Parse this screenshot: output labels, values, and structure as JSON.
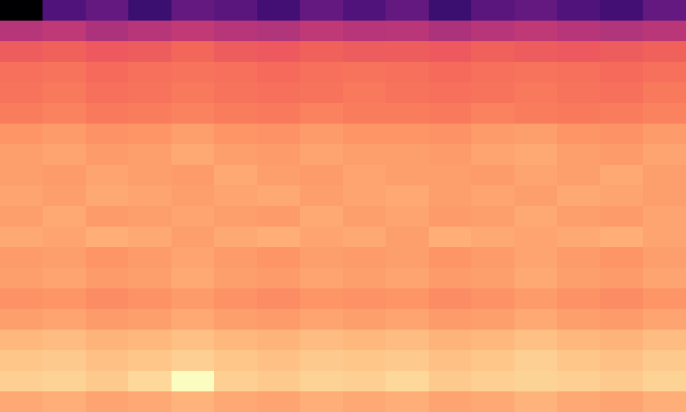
{
  "chart_data": {
    "type": "heatmap",
    "color": "magma",
    "tick_labels": false,
    "cells": [
      [
        0.0,
        0.25,
        0.3,
        0.2,
        0.3,
        0.28,
        0.22,
        0.3,
        0.25,
        0.3,
        0.2,
        0.28,
        0.3,
        0.25,
        0.22,
        0.3
      ],
      [
        0.5,
        0.52,
        0.48,
        0.5,
        0.53,
        0.5,
        0.49,
        0.52,
        0.5,
        0.51,
        0.48,
        0.5,
        0.52,
        0.5,
        0.49,
        0.51
      ],
      [
        0.66,
        0.67,
        0.65,
        0.66,
        0.68,
        0.66,
        0.65,
        0.67,
        0.66,
        0.66,
        0.65,
        0.67,
        0.66,
        0.65,
        0.66,
        0.67
      ],
      [
        0.7,
        0.71,
        0.69,
        0.7,
        0.71,
        0.7,
        0.69,
        0.7,
        0.71,
        0.7,
        0.69,
        0.7,
        0.71,
        0.7,
        0.69,
        0.7
      ],
      [
        0.71,
        0.72,
        0.7,
        0.71,
        0.72,
        0.71,
        0.7,
        0.71,
        0.72,
        0.71,
        0.7,
        0.71,
        0.72,
        0.71,
        0.7,
        0.72
      ],
      [
        0.73,
        0.74,
        0.72,
        0.73,
        0.74,
        0.73,
        0.72,
        0.74,
        0.73,
        0.73,
        0.72,
        0.74,
        0.73,
        0.72,
        0.73,
        0.74
      ],
      [
        0.78,
        0.79,
        0.77,
        0.78,
        0.8,
        0.78,
        0.77,
        0.79,
        0.78,
        0.78,
        0.77,
        0.79,
        0.8,
        0.78,
        0.77,
        0.79
      ],
      [
        0.8,
        0.81,
        0.79,
        0.8,
        0.82,
        0.8,
        0.79,
        0.81,
        0.8,
        0.8,
        0.79,
        0.81,
        0.82,
        0.8,
        0.79,
        0.81
      ],
      [
        0.8,
        0.79,
        0.81,
        0.8,
        0.79,
        0.82,
        0.8,
        0.79,
        0.81,
        0.8,
        0.8,
        0.79,
        0.81,
        0.8,
        0.82,
        0.8
      ],
      [
        0.81,
        0.8,
        0.82,
        0.81,
        0.8,
        0.81,
        0.82,
        0.8,
        0.81,
        0.82,
        0.8,
        0.81,
        0.8,
        0.82,
        0.81,
        0.8
      ],
      [
        0.8,
        0.82,
        0.79,
        0.8,
        0.81,
        0.8,
        0.79,
        0.82,
        0.8,
        0.81,
        0.79,
        0.8,
        0.82,
        0.8,
        0.79,
        0.81
      ],
      [
        0.82,
        0.81,
        0.83,
        0.82,
        0.8,
        0.82,
        0.83,
        0.81,
        0.82,
        0.8,
        0.83,
        0.82,
        0.81,
        0.82,
        0.83,
        0.81
      ],
      [
        0.79,
        0.8,
        0.78,
        0.79,
        0.81,
        0.79,
        0.78,
        0.8,
        0.79,
        0.8,
        0.78,
        0.79,
        0.81,
        0.79,
        0.78,
        0.8
      ],
      [
        0.8,
        0.81,
        0.79,
        0.8,
        0.82,
        0.8,
        0.79,
        0.81,
        0.8,
        0.81,
        0.79,
        0.8,
        0.82,
        0.8,
        0.79,
        0.81
      ],
      [
        0.77,
        0.78,
        0.76,
        0.77,
        0.79,
        0.77,
        0.76,
        0.78,
        0.77,
        0.78,
        0.76,
        0.77,
        0.79,
        0.77,
        0.76,
        0.78
      ],
      [
        0.8,
        0.81,
        0.79,
        0.8,
        0.82,
        0.8,
        0.79,
        0.81,
        0.8,
        0.81,
        0.79,
        0.8,
        0.82,
        0.8,
        0.79,
        0.81
      ],
      [
        0.85,
        0.86,
        0.84,
        0.85,
        0.87,
        0.85,
        0.84,
        0.86,
        0.85,
        0.86,
        0.84,
        0.85,
        0.87,
        0.85,
        0.84,
        0.86
      ],
      [
        0.88,
        0.89,
        0.87,
        0.88,
        0.9,
        0.88,
        0.87,
        0.89,
        0.88,
        0.89,
        0.87,
        0.88,
        0.9,
        0.88,
        0.87,
        0.89
      ],
      [
        0.9,
        0.91,
        0.89,
        0.92,
        1.0,
        0.9,
        0.89,
        0.91,
        0.9,
        0.92,
        0.89,
        0.9,
        0.91,
        0.9,
        0.89,
        0.91
      ],
      [
        0.82,
        0.83,
        0.81,
        0.82,
        0.84,
        0.82,
        0.81,
        0.83,
        0.82,
        0.83,
        0.81,
        0.82,
        0.84,
        0.82,
        0.81,
        0.83
      ]
    ]
  }
}
